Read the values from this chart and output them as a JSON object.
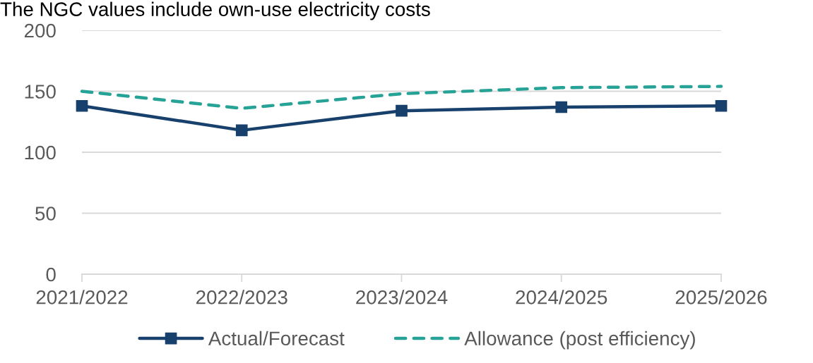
{
  "chart_data": {
    "type": "line",
    "title": "The NGC values include own-use electricity costs",
    "categories": [
      "2021/2022",
      "2022/2023",
      "2023/2024",
      "2024/2025",
      "2025/2026"
    ],
    "series": [
      {
        "name": "Actual/Forecast",
        "color": "#17406d",
        "values": [
          138,
          118,
          134,
          137,
          138
        ],
        "marker": "square",
        "line_style": "solid"
      },
      {
        "name": "Allowance (post efficiency)",
        "color": "#26a396",
        "values": [
          150,
          136,
          148,
          153,
          154
        ],
        "marker": "none",
        "line_style": "dashed"
      }
    ],
    "ylim": [
      0,
      200
    ],
    "yticks": [
      0,
      50,
      100,
      150,
      200
    ],
    "grid": "y",
    "legend": "bottom"
  }
}
